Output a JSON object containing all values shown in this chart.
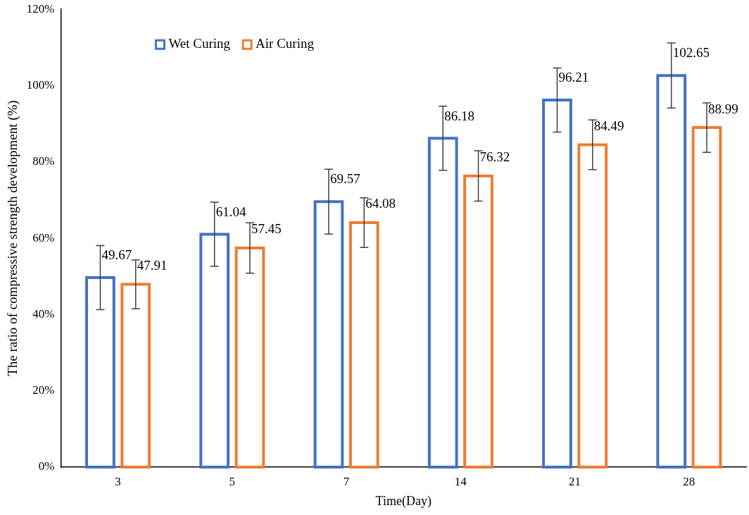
{
  "chart_data": {
    "type": "bar",
    "xlabel": "Time(Day)",
    "ylabel": "The ratio of compressive strength development (%)",
    "categories": [
      "3",
      "5",
      "7",
      "14",
      "21",
      "28"
    ],
    "series": [
      {
        "name": "Wet Curing",
        "color": "#4472c4",
        "values": [
          49.67,
          61.04,
          69.57,
          86.18,
          96.21,
          102.65
        ],
        "errors": [
          8.4,
          8.4,
          8.5,
          8.4,
          8.4,
          8.5
        ]
      },
      {
        "name": "Air Curing",
        "color": "#ed7d31",
        "values": [
          47.91,
          57.45,
          64.08,
          76.32,
          84.49,
          88.99
        ],
        "errors": [
          6.4,
          6.6,
          6.5,
          6.6,
          6.5,
          6.5
        ]
      }
    ],
    "ylim": [
      0,
      120
    ],
    "yticks": [
      {
        "value": 0,
        "label": "0%"
      },
      {
        "value": 20,
        "label": "20%"
      },
      {
        "value": 40,
        "label": "40%"
      },
      {
        "value": 60,
        "label": "60%"
      },
      {
        "value": 80,
        "label": "80%"
      },
      {
        "value": 100,
        "label": "100%"
      },
      {
        "value": 120,
        "label": "120%"
      }
    ],
    "grid": false,
    "legend": "top left",
    "data_labels": true
  }
}
